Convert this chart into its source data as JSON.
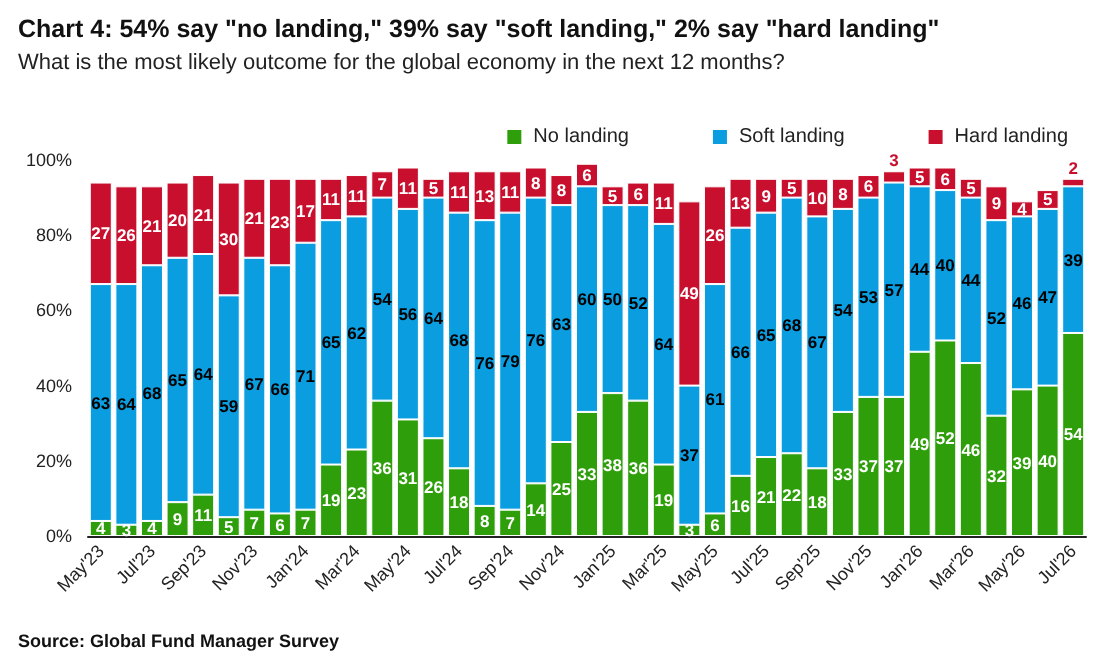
{
  "chart_data": {
    "type": "bar",
    "title": "Chart 4: 54% say \"no landing,\" 39% say \"soft landing,\" 2% say \"hard landing\"",
    "subtitle": "What is the most likely outcome for the global economy in the next 12 months?",
    "annotations": [
      "Source: Global Fund Manager Survey"
    ],
    "categories": [
      "May'23",
      null,
      "Jul'23",
      null,
      "Sep'23",
      null,
      "Nov'23",
      null,
      "Jan'24",
      null,
      "Mar'24",
      null,
      "May'24",
      null,
      "Jul'24",
      null,
      "Sep'24",
      null,
      "Nov'24",
      null,
      "Jan'25",
      null,
      "Mar'25",
      null,
      "May'25",
      null,
      "Jul'25",
      null,
      "Sep'25",
      null,
      "Nov'25",
      null,
      "Jan'26",
      null,
      "Mar'26",
      null,
      "May'26",
      null,
      "Jul'26"
    ],
    "series": [
      {
        "name": "No landing",
        "color": "#2e9e0a",
        "values": [
          4,
          3,
          4,
          9,
          11,
          5,
          7,
          6,
          7,
          19,
          23,
          36,
          31,
          26,
          18,
          8,
          7,
          14,
          25,
          33,
          38,
          36,
          19,
          3,
          6,
          16,
          21,
          22,
          18,
          33,
          37,
          37,
          49,
          52,
          46,
          32,
          39,
          40,
          54
        ]
      },
      {
        "name": "Soft landing",
        "color": "#0a9ee0",
        "values": [
          63,
          64,
          68,
          65,
          64,
          59,
          67,
          66,
          71,
          65,
          62,
          54,
          56,
          64,
          68,
          76,
          79,
          76,
          63,
          60,
          50,
          52,
          64,
          37,
          61,
          66,
          65,
          68,
          67,
          54,
          53,
          57,
          44,
          40,
          44,
          52,
          46,
          47,
          39
        ]
      },
      {
        "name": "Hard landing",
        "color": "#c8102e",
        "values": [
          27,
          26,
          21,
          20,
          21,
          30,
          21,
          23,
          17,
          11,
          11,
          7,
          11,
          5,
          11,
          13,
          11,
          8,
          8,
          6,
          5,
          6,
          11,
          49,
          26,
          13,
          9,
          5,
          10,
          8,
          6,
          3,
          5,
          6,
          5,
          9,
          4,
          5,
          2
        ]
      }
    ],
    "stacked": true,
    "data_labels": true,
    "legend": "top right",
    "grid": false,
    "ylim": [
      0,
      100
    ],
    "yticks": [
      {
        "value": 0,
        "label": "0%"
      },
      {
        "value": 20,
        "label": "20%"
      },
      {
        "value": 40,
        "label": "40%"
      },
      {
        "value": 60,
        "label": "60%"
      },
      {
        "value": 80,
        "label": "80%"
      },
      {
        "value": 100,
        "label": "100%"
      }
    ]
  }
}
